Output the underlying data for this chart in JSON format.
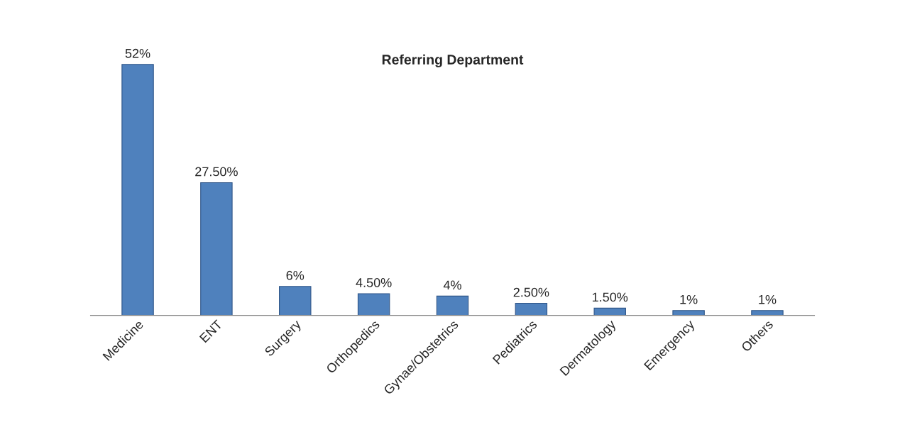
{
  "chart_data": {
    "type": "bar",
    "title": "Referring Department",
    "categories": [
      "Medicine",
      "ENT",
      "Surgery",
      "Orthopedics",
      "Gynae/Obstetrics",
      "Pediatrics",
      "Dermatology",
      "Emergency",
      "Others"
    ],
    "values": [
      52,
      27.5,
      6,
      4.5,
      4,
      2.5,
      1.5,
      1,
      1
    ],
    "value_labels": [
      "52%",
      "27.50%",
      "6%",
      "4.50%",
      "4%",
      "2.50%",
      "1.50%",
      "1%",
      "1%"
    ],
    "color": "#4f81bd",
    "grid": false,
    "legend": false,
    "tick_labels": "x"
  }
}
